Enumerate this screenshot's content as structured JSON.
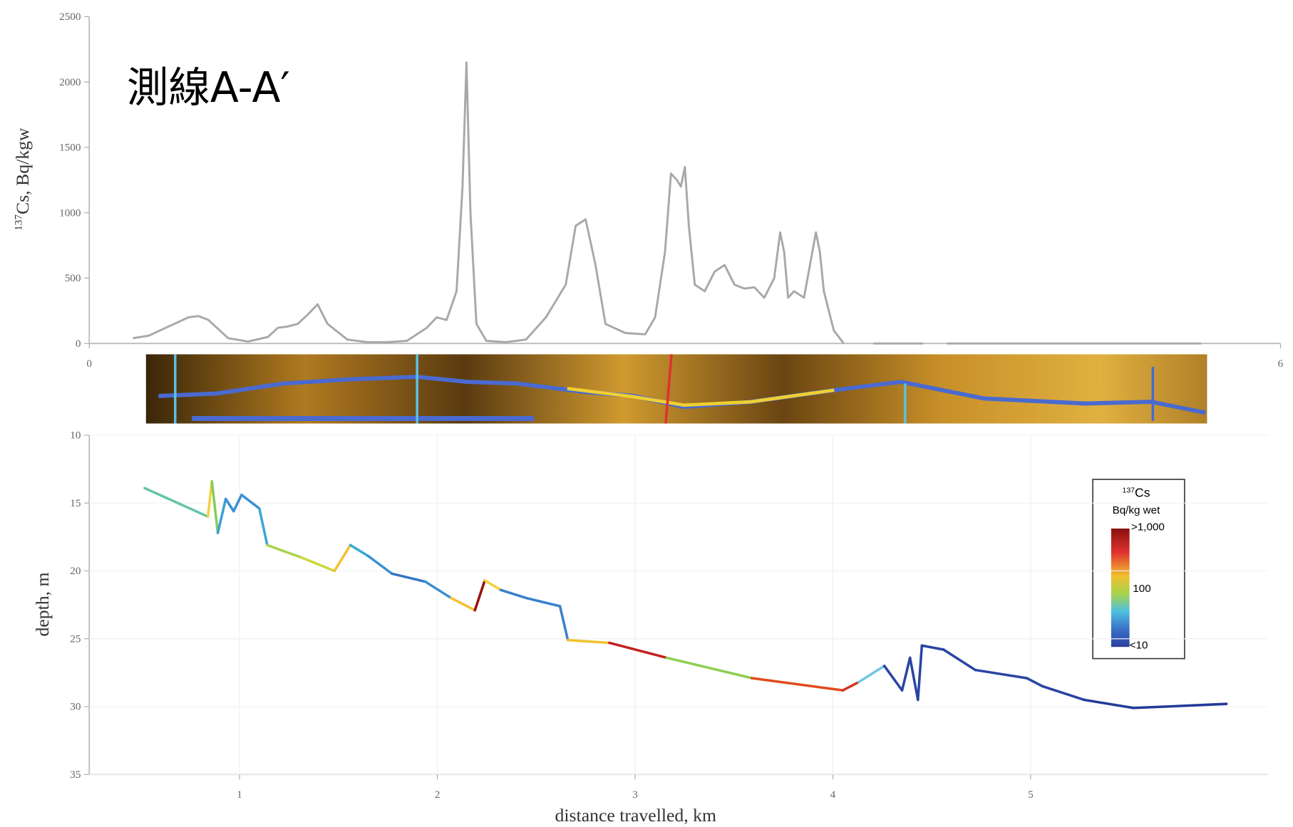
{
  "chart_data": [
    {
      "type": "line",
      "annotation": "測線A-A′",
      "ylabel_sup": "137",
      "ylabel": "Cs, Bq/kgw",
      "xlim": [
        0,
        6
      ],
      "xticks": [
        0,
        6
      ],
      "ylim": [
        0,
        2500
      ],
      "yticks": [
        0,
        500,
        1000,
        1500,
        2000,
        2500
      ],
      "grid": false,
      "x": [
        0.22,
        0.3,
        0.4,
        0.5,
        0.55,
        0.6,
        0.7,
        0.8,
        0.9,
        0.95,
        1.0,
        1.05,
        1.1,
        1.15,
        1.2,
        1.3,
        1.4,
        1.5,
        1.6,
        1.7,
        1.75,
        1.8,
        1.85,
        1.88,
        1.9,
        1.92,
        1.95,
        2.0,
        2.1,
        2.2,
        2.3,
        2.4,
        2.45,
        2.5,
        2.55,
        2.6,
        2.7,
        2.8,
        2.85,
        2.9,
        2.93,
        2.96,
        2.98,
        3.0,
        3.02,
        3.05,
        3.1,
        3.15,
        3.2,
        3.25,
        3.3,
        3.35,
        3.4,
        3.45,
        3.48,
        3.5,
        3.52,
        3.55,
        3.6,
        3.63,
        3.66,
        3.68,
        3.7,
        3.75,
        3.8,
        3.87,
        3.95,
        4.2,
        4.26,
        4.32,
        5.6
      ],
      "series": [
        {
          "color": "#a8a8a8",
          "values": [
            40,
            60,
            130,
            200,
            210,
            180,
            40,
            15,
            50,
            120,
            130,
            150,
            220,
            300,
            150,
            30,
            10,
            10,
            20,
            120,
            200,
            180,
            400,
            1200,
            2150,
            1000,
            150,
            20,
            10,
            30,
            200,
            450,
            900,
            950,
            600,
            150,
            80,
            70,
            200,
            700,
            1300,
            1250,
            1200,
            1350,
            900,
            450,
            400,
            550,
            600,
            450,
            420,
            430,
            350,
            500,
            850,
            700,
            350,
            400,
            350,
            600,
            850,
            700,
            400,
            100,
            0,
            null,
            0,
            0,
            null,
            0,
            0
          ]
        }
      ]
    },
    {
      "type": "line",
      "xlabel": "distance travelled, km",
      "ylabel": "depth, m",
      "xlim": [
        0.24,
        6.2
      ],
      "xticks": [
        1,
        2,
        3,
        4,
        5
      ],
      "ylim": [
        10,
        35
      ],
      "yticks": [
        10,
        15,
        20,
        25,
        30,
        35
      ],
      "y_inverted": true,
      "grid": true,
      "x": [
        0.52,
        0.84,
        0.86,
        0.89,
        0.93,
        0.97,
        1.01,
        1.1,
        1.14,
        1.31,
        1.48,
        1.56,
        1.65,
        1.77,
        1.94,
        2.07,
        2.19,
        2.24,
        2.32,
        2.45,
        2.62,
        2.66,
        2.87,
        3.16,
        3.59,
        4.05,
        4.13,
        4.26,
        4.35,
        4.39,
        4.43,
        4.45,
        4.56,
        4.72,
        4.98,
        5.06,
        5.27,
        5.52,
        5.99
      ],
      "series": [
        {
          "values": [
            13.9,
            16.0,
            13.4,
            17.2,
            14.7,
            15.6,
            14.4,
            15.4,
            18.1,
            19.0,
            20.0,
            18.1,
            18.9,
            20.2,
            20.8,
            22.0,
            22.9,
            20.7,
            21.4,
            22.0,
            22.6,
            25.1,
            25.3,
            26.4,
            27.9,
            28.8,
            28.2,
            27.0,
            28.8,
            26.4,
            29.5,
            25.5,
            25.8,
            27.3,
            27.9,
            28.5,
            29.5,
            30.1,
            29.8
          ],
          "colors": [
            "#66c4a8",
            "#f2d23c",
            "#86cc5a",
            "#3a9fd6",
            "#3a8fd2",
            "#3a8fd2",
            "#3a8fd2",
            "#3aa6d8",
            "#a8d44a",
            "#cfd63e",
            "#f0c232",
            "#3aa8d8",
            "#3a90d2",
            "#3476c6",
            "#3a90d2",
            "#f0c232",
            "#9a1010",
            "#f2d23c",
            "#3a80cc",
            "#3a80cc",
            "#3a80cc",
            "#f0c232",
            "#c42020",
            "#8ccf52",
            "#e04a1e",
            "#d43222",
            "#6ec6e2",
            "#2a44a4",
            "#2a44a4",
            "#2a44a4",
            "#2a44a4",
            "#2a44a4",
            "#2a44a4",
            "#2a44a4",
            "#2a44a4",
            "#2a44a4",
            "#233a98",
            "#233a98",
            "#233a98"
          ]
        }
      ],
      "colorbar": {
        "title_sup": "137",
        "title": "Cs",
        "unit": "Bq/kg wet",
        "labels": [
          ">1,000",
          "100",
          "<10"
        ]
      }
    }
  ]
}
